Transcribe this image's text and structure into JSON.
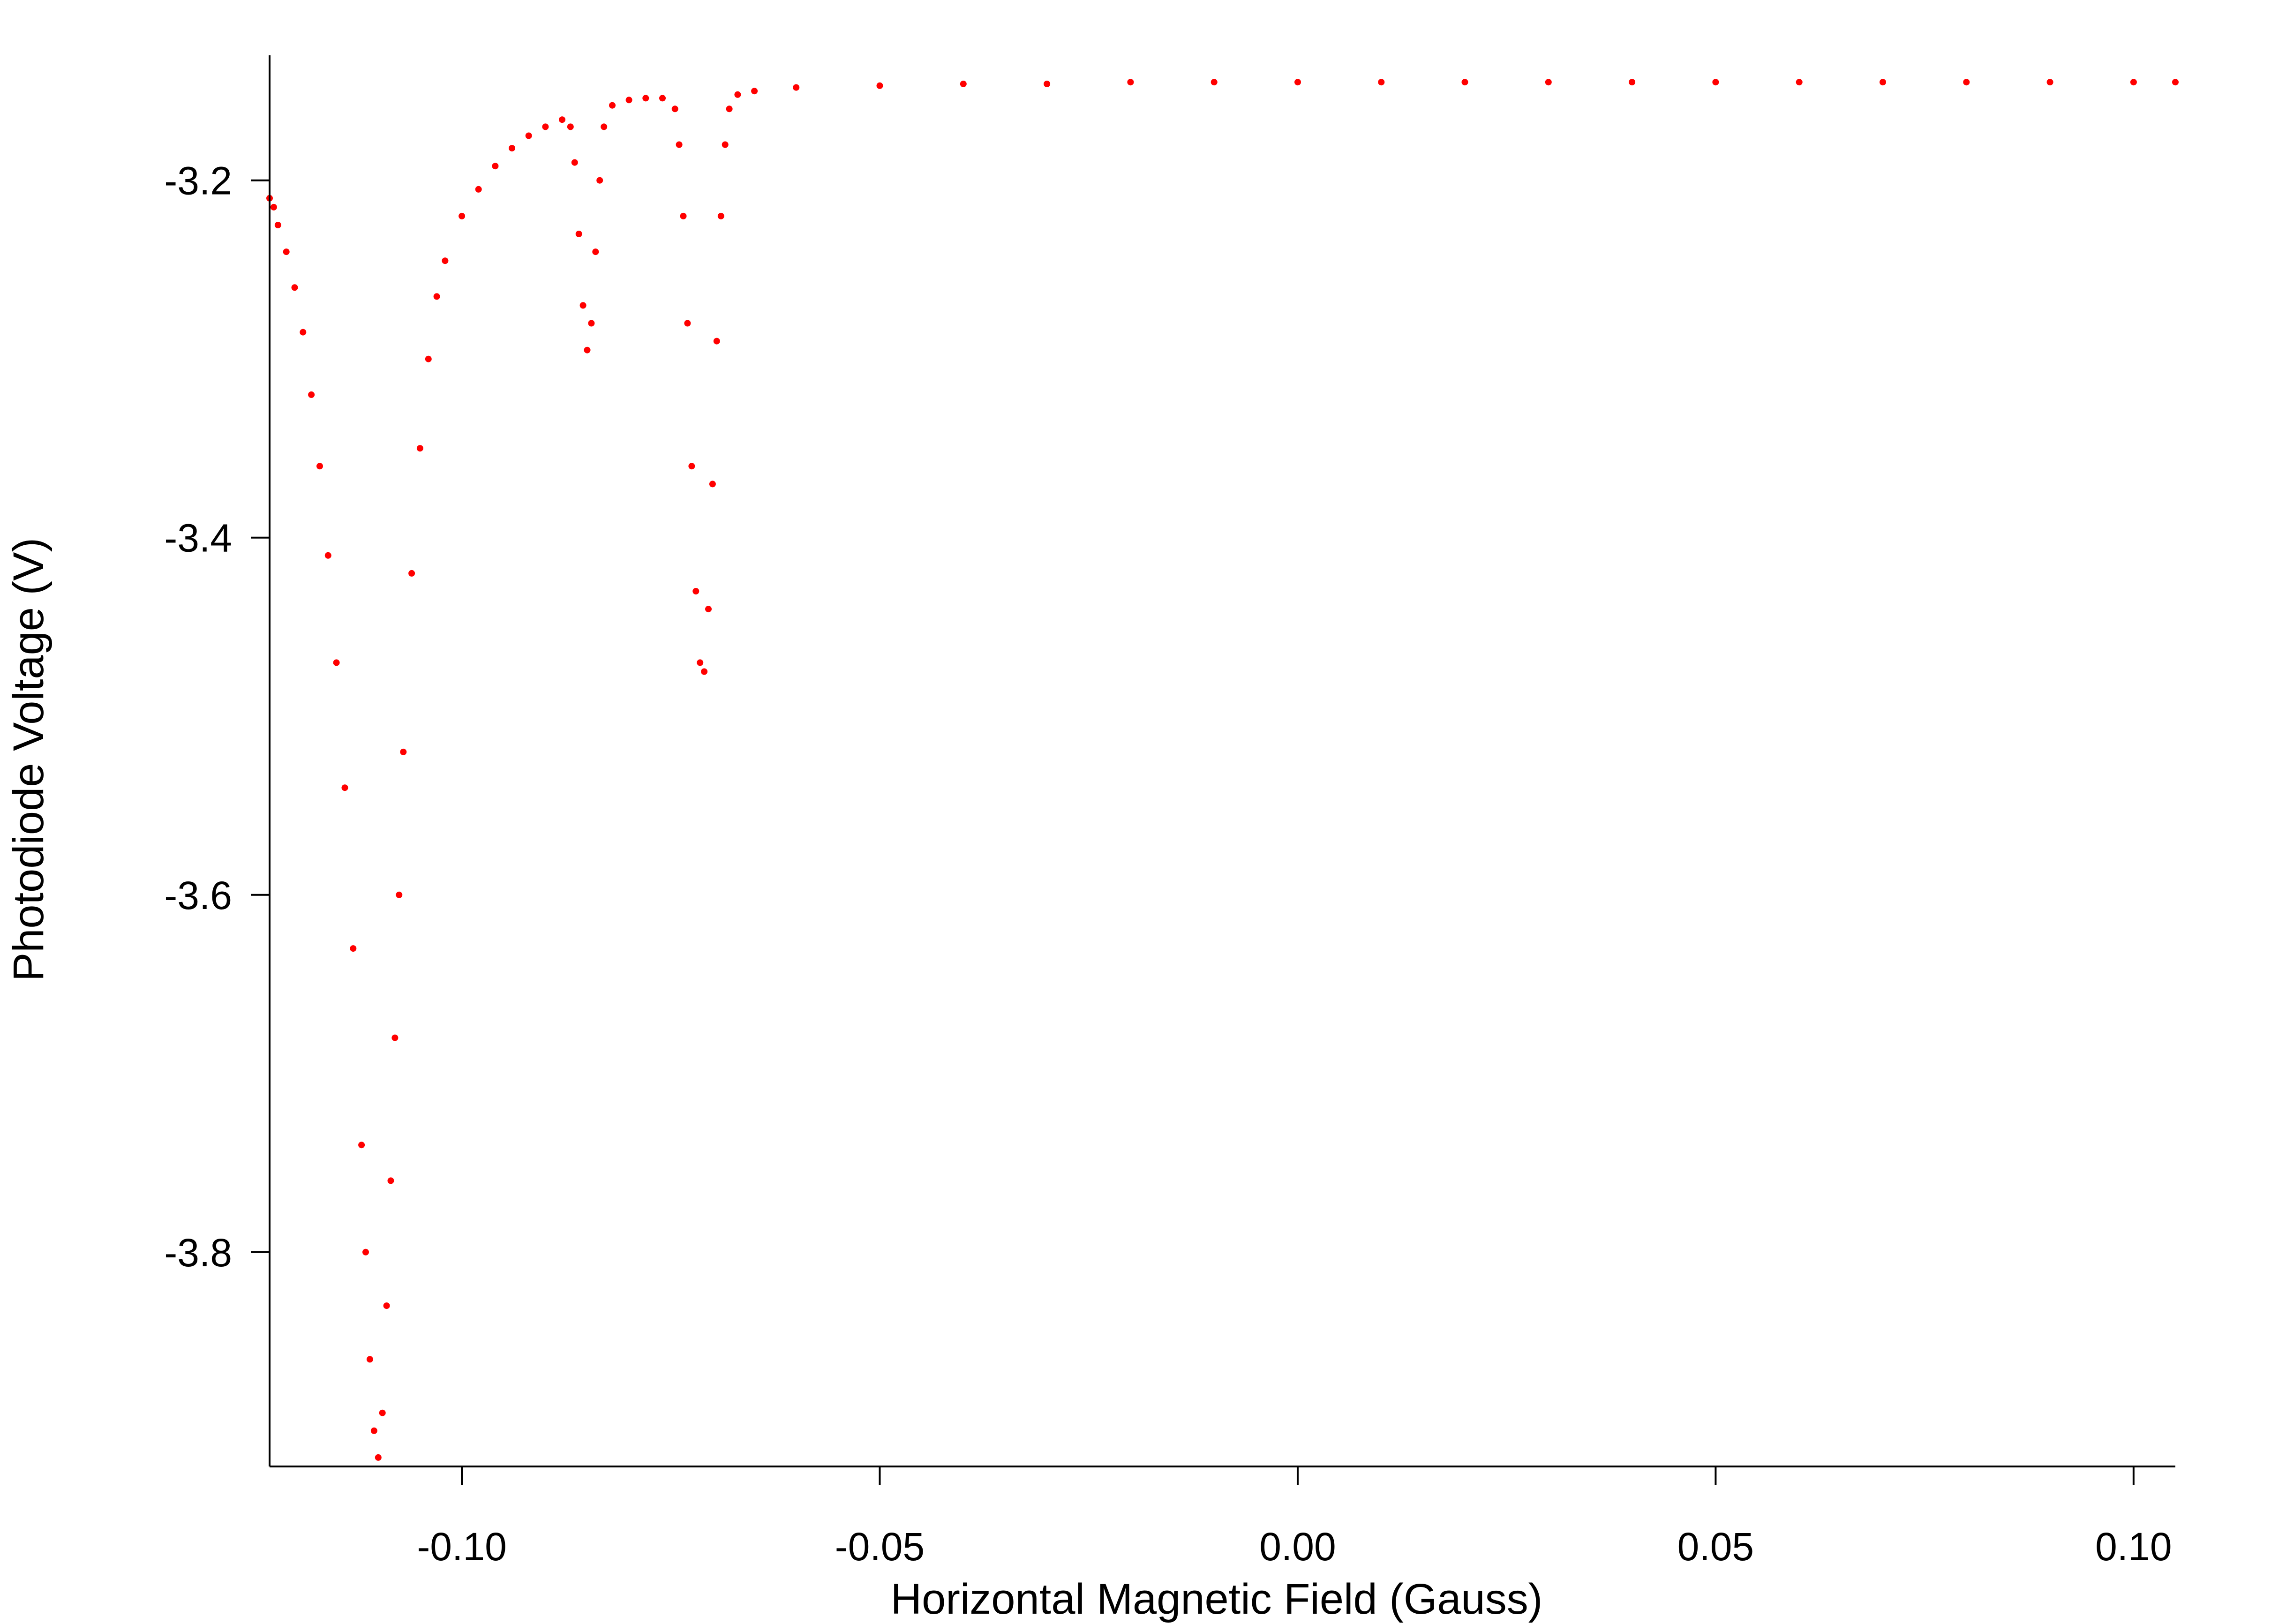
{
  "chart_data": {
    "type": "scatter",
    "title": "",
    "xlabel": "Horizontal Magnetic Field (Gauss)",
    "ylabel": "Photodiode Voltage (V)",
    "xlim": [
      -0.123,
      0.105
    ],
    "ylim": [
      -3.92,
      -3.13
    ],
    "x_ticks": [
      -0.1,
      -0.05,
      0.0,
      0.05,
      0.1
    ],
    "x_tick_labels": [
      "-0.10",
      "-0.05",
      "0.00",
      "0.05",
      "0.10"
    ],
    "y_ticks": [
      -3.2,
      -3.4,
      -3.6,
      -3.8
    ],
    "y_tick_labels": [
      "-3.2",
      "-3.4",
      "-3.6",
      "-3.8"
    ],
    "grid": false,
    "legend": "none",
    "marker_color": "#ff0000",
    "series": [
      {
        "points": [
          [
            -0.123,
            -3.21
          ],
          [
            -0.1225,
            -3.215
          ],
          [
            -0.122,
            -3.225
          ],
          [
            -0.121,
            -3.24
          ],
          [
            -0.12,
            -3.26
          ],
          [
            -0.119,
            -3.285
          ],
          [
            -0.118,
            -3.32
          ],
          [
            -0.117,
            -3.36
          ],
          [
            -0.116,
            -3.41
          ],
          [
            -0.115,
            -3.47
          ],
          [
            -0.114,
            -3.54
          ],
          [
            -0.113,
            -3.63
          ],
          [
            -0.112,
            -3.74
          ],
          [
            -0.1115,
            -3.8
          ],
          [
            -0.111,
            -3.86
          ],
          [
            -0.1105,
            -3.9
          ],
          [
            -0.11,
            -3.915
          ],
          [
            -0.1095,
            -3.89
          ],
          [
            -0.109,
            -3.83
          ],
          [
            -0.1085,
            -3.76
          ],
          [
            -0.108,
            -3.68
          ],
          [
            -0.1075,
            -3.6
          ],
          [
            -0.107,
            -3.52
          ],
          [
            -0.106,
            -3.42
          ],
          [
            -0.105,
            -3.35
          ],
          [
            -0.104,
            -3.3
          ],
          [
            -0.103,
            -3.265
          ],
          [
            -0.102,
            -3.245
          ],
          [
            -0.1,
            -3.22
          ],
          [
            -0.098,
            -3.205
          ],
          [
            -0.096,
            -3.192
          ],
          [
            -0.094,
            -3.182
          ],
          [
            -0.092,
            -3.175
          ],
          [
            -0.09,
            -3.17
          ],
          [
            -0.088,
            -3.166
          ],
          [
            -0.087,
            -3.17
          ],
          [
            -0.0865,
            -3.19
          ],
          [
            -0.086,
            -3.23
          ],
          [
            -0.0855,
            -3.27
          ],
          [
            -0.085,
            -3.295
          ],
          [
            -0.0845,
            -3.28
          ],
          [
            -0.084,
            -3.24
          ],
          [
            -0.0835,
            -3.2
          ],
          [
            -0.083,
            -3.17
          ],
          [
            -0.082,
            -3.158
          ],
          [
            -0.08,
            -3.155
          ],
          [
            -0.078,
            -3.154
          ],
          [
            -0.076,
            -3.154
          ],
          [
            -0.0745,
            -3.16
          ],
          [
            -0.074,
            -3.18
          ],
          [
            -0.0735,
            -3.22
          ],
          [
            -0.073,
            -3.28
          ],
          [
            -0.0725,
            -3.36
          ],
          [
            -0.072,
            -3.43
          ],
          [
            -0.0715,
            -3.47
          ],
          [
            -0.071,
            -3.475
          ],
          [
            -0.0705,
            -3.44
          ],
          [
            -0.07,
            -3.37
          ],
          [
            -0.0695,
            -3.29
          ],
          [
            -0.069,
            -3.22
          ],
          [
            -0.0685,
            -3.18
          ],
          [
            -0.068,
            -3.16
          ],
          [
            -0.067,
            -3.152
          ],
          [
            -0.065,
            -3.15
          ],
          [
            -0.06,
            -3.148
          ],
          [
            -0.05,
            -3.147
          ],
          [
            -0.04,
            -3.146
          ],
          [
            -0.03,
            -3.146
          ],
          [
            -0.02,
            -3.145
          ],
          [
            -0.01,
            -3.145
          ],
          [
            0.0,
            -3.145
          ],
          [
            0.01,
            -3.145
          ],
          [
            0.02,
            -3.145
          ],
          [
            0.03,
            -3.145
          ],
          [
            0.04,
            -3.145
          ],
          [
            0.05,
            -3.145
          ],
          [
            0.06,
            -3.145
          ],
          [
            0.07,
            -3.145
          ],
          [
            0.08,
            -3.145
          ],
          [
            0.09,
            -3.145
          ],
          [
            0.1,
            -3.145
          ],
          [
            0.105,
            -3.145
          ]
        ]
      }
    ]
  }
}
